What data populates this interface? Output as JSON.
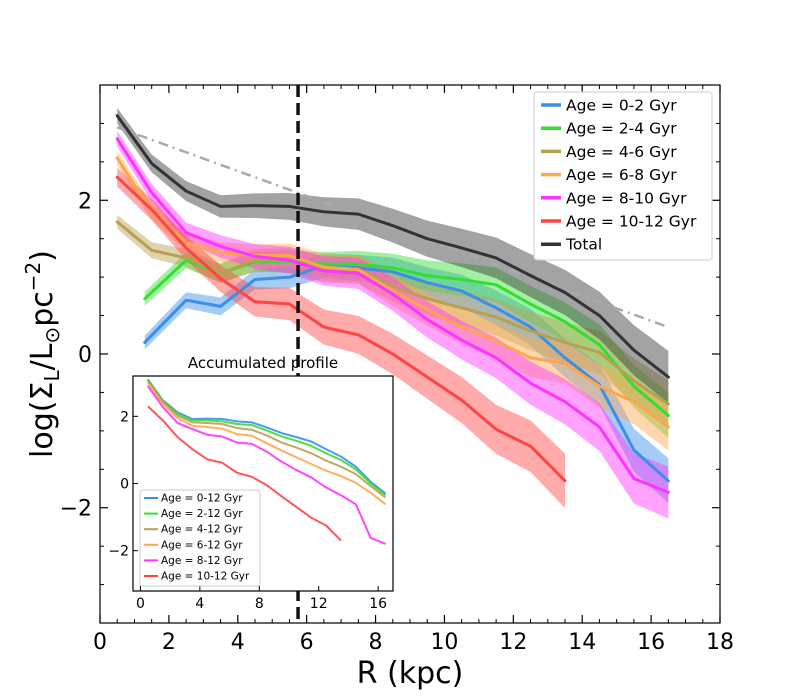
{
  "chart_data": [
    {
      "type": "line",
      "xlabel": "R (kpc)",
      "ylabel": "log(Σ_L/L⊙pc⁻²)",
      "ylabel_parts": {
        "main": "log(Σ",
        "sub1": "L",
        "slash": "/L",
        "sub2": "⊙",
        "pc": "pc",
        "sup": "−2",
        "close": ")"
      },
      "xlim": [
        0,
        18
      ],
      "ylim": [
        -3.5,
        3.5
      ],
      "xticks": [
        0,
        2,
        4,
        6,
        8,
        10,
        12,
        14,
        16,
        18
      ],
      "yticks": [
        -2,
        0,
        2
      ],
      "ytick_labels": [
        "−2",
        "0",
        "2"
      ],
      "vline_x": 5.75,
      "reference_line": {
        "name": "reference slope",
        "x": [
          0.5,
          16.5
        ],
        "y": [
          2.95,
          0.35
        ],
        "color": "#aaaaaa"
      },
      "legend_position": "top-right",
      "series": [
        {
          "name": "Age = 0-2 Gyr",
          "color": "#3a8fe8",
          "x": [
            1.3,
            2.5,
            3.5,
            4.5,
            5.5,
            6.5,
            7.5,
            8.5,
            9.5,
            10.5,
            11.5,
            12.5,
            13.5,
            14.5,
            15.5,
            16.5
          ],
          "y": [
            0.15,
            0.7,
            0.62,
            0.97,
            1.0,
            1.15,
            1.12,
            1.07,
            0.93,
            0.82,
            0.6,
            0.35,
            -0.05,
            -0.4,
            -1.25,
            -1.65
          ],
          "band": 0.09
        },
        {
          "name": "Age = 2-4 Gyr",
          "color": "#33dd33",
          "x": [
            1.3,
            2.5,
            3.5,
            4.5,
            5.5,
            6.5,
            7.5,
            8.5,
            9.5,
            10.5,
            11.5,
            12.5,
            13.5,
            14.5,
            15.5,
            16.5
          ],
          "y": [
            0.72,
            1.22,
            1.05,
            1.2,
            1.2,
            1.17,
            1.17,
            1.12,
            1.02,
            0.97,
            0.9,
            0.65,
            0.42,
            0.12,
            -0.42,
            -0.8
          ],
          "band": 0.09
        },
        {
          "name": "Age = 4-6 Gyr",
          "color": "#b8a050",
          "x": [
            0.5,
            1.5,
            2.5,
            3.5,
            4.5,
            5.5,
            6.5,
            7.5,
            8.5,
            9.5,
            10.5,
            11.5,
            12.5,
            13.5,
            14.5,
            15.5,
            16.5
          ],
          "y": [
            1.72,
            1.35,
            1.25,
            1.05,
            1.22,
            1.22,
            1.1,
            1.1,
            0.88,
            0.72,
            0.6,
            0.48,
            0.3,
            0.15,
            0.02,
            -0.35,
            -0.65
          ],
          "band": 0.09
        },
        {
          "name": "Age = 6-8 Gyr",
          "color": "#ffa64d",
          "x": [
            0.5,
            1.5,
            2.5,
            3.5,
            4.5,
            5.5,
            6.5,
            7.5,
            8.5,
            9.5,
            10.5,
            11.5,
            12.5,
            13.5,
            14.5,
            15.5,
            16.5
          ],
          "y": [
            2.55,
            1.85,
            1.45,
            1.32,
            1.28,
            1.28,
            1.13,
            1.1,
            0.82,
            0.58,
            0.35,
            0.17,
            -0.05,
            -0.12,
            -0.42,
            -0.62,
            -0.95
          ],
          "band": 0.09
        },
        {
          "name": "Age = 8-10 Gyr",
          "color": "#ff33ff",
          "x": [
            0.5,
            1.5,
            2.5,
            3.5,
            4.5,
            5.5,
            6.5,
            7.5,
            8.5,
            9.5,
            10.5,
            11.5,
            12.5,
            13.5,
            14.5,
            15.5,
            16.5
          ],
          "y": [
            2.8,
            2.1,
            1.58,
            1.4,
            1.27,
            1.22,
            1.08,
            1.05,
            0.78,
            0.45,
            0.18,
            -0.05,
            -0.38,
            -0.62,
            -0.95,
            -1.62,
            -1.8
          ],
          "band": 0.1
        },
        {
          "name": "Age = 10-12 Gyr",
          "color": "#ff4444",
          "x": [
            0.5,
            1.5,
            2.5,
            3.5,
            4.5,
            5.5,
            6.5,
            7.5,
            8.5,
            9.5,
            10.5,
            11.5,
            12.5,
            13.5
          ],
          "y": [
            2.3,
            1.88,
            1.38,
            0.98,
            0.68,
            0.65,
            0.35,
            0.25,
            0.0,
            -0.3,
            -0.6,
            -0.98,
            -1.2,
            -1.65
          ],
          "band": 0.12
        },
        {
          "name": "Total",
          "color": "#333333",
          "x": [
            0.5,
            1.5,
            2.5,
            3.5,
            4.5,
            5.5,
            6.5,
            7.5,
            8.5,
            9.5,
            10.5,
            11.5,
            12.5,
            13.5,
            14.5,
            15.5,
            16.5
          ],
          "y": [
            3.1,
            2.48,
            2.12,
            1.92,
            1.93,
            1.92,
            1.85,
            1.82,
            1.67,
            1.5,
            1.38,
            1.25,
            1.02,
            0.8,
            0.5,
            0.05,
            -0.3
          ],
          "band": 0.1
        }
      ]
    },
    {
      "type": "line",
      "title": "Accumulated profile",
      "xlim": [
        -0.5,
        17
      ],
      "ylim": [
        -3.2,
        3.2
      ],
      "xticks": [
        0,
        4,
        8,
        12,
        16
      ],
      "yticks": [
        -2,
        0,
        2
      ],
      "ytick_labels": [
        "−2",
        "0",
        "2"
      ],
      "legend_position": "lower-left",
      "series": [
        {
          "name": "Age = 0-12 Gyr",
          "color": "#3a8fe8",
          "x": [
            0.5,
            1.5,
            2.5,
            3.5,
            4.5,
            5.5,
            6.5,
            7.5,
            8.5,
            9.5,
            10.5,
            11.5,
            12.5,
            13.5,
            14.5,
            15.5,
            16.5
          ],
          "y": [
            3.1,
            2.48,
            2.12,
            1.92,
            1.93,
            1.92,
            1.85,
            1.82,
            1.67,
            1.5,
            1.38,
            1.25,
            1.02,
            0.8,
            0.5,
            0.05,
            -0.3
          ]
        },
        {
          "name": "Age = 2-12 Gyr",
          "color": "#33dd33",
          "x": [
            0.5,
            1.5,
            2.5,
            3.5,
            4.5,
            5.5,
            6.5,
            7.5,
            8.5,
            9.5,
            10.5,
            11.5,
            12.5,
            13.5,
            14.5,
            15.5,
            16.5
          ],
          "y": [
            3.08,
            2.46,
            2.08,
            1.88,
            1.88,
            1.85,
            1.77,
            1.74,
            1.58,
            1.4,
            1.27,
            1.12,
            0.9,
            0.7,
            0.42,
            0.0,
            -0.35
          ]
        },
        {
          "name": "Age = 4-12 Gyr",
          "color": "#b8a050",
          "x": [
            0.5,
            1.5,
            2.5,
            3.5,
            4.5,
            5.5,
            6.5,
            7.5,
            8.5,
            9.5,
            10.5,
            11.5,
            12.5,
            13.5,
            14.5,
            15.5,
            16.5
          ],
          "y": [
            3.05,
            2.43,
            2.02,
            1.82,
            1.8,
            1.77,
            1.65,
            1.6,
            1.43,
            1.22,
            1.07,
            0.9,
            0.68,
            0.5,
            0.28,
            -0.08,
            -0.42
          ]
        },
        {
          "name": "Age = 6-12 Gyr",
          "color": "#ffa64d",
          "x": [
            0.5,
            1.5,
            2.5,
            3.5,
            4.5,
            5.5,
            6.5,
            7.5,
            8.5,
            9.5,
            10.5,
            11.5,
            12.5,
            13.5,
            14.5,
            15.5,
            16.5
          ],
          "y": [
            3.0,
            2.38,
            1.95,
            1.72,
            1.68,
            1.63,
            1.47,
            1.42,
            1.2,
            0.98,
            0.78,
            0.58,
            0.38,
            0.22,
            0.02,
            -0.28,
            -0.62
          ]
        },
        {
          "name": "Age = 8-12 Gyr",
          "color": "#ff33ff",
          "x": [
            0.5,
            1.5,
            2.5,
            3.5,
            4.5,
            5.5,
            6.5,
            7.5,
            8.5,
            9.5,
            10.5,
            11.5,
            12.5,
            13.5,
            14.5,
            15.5,
            16.5
          ],
          "y": [
            2.9,
            2.28,
            1.8,
            1.62,
            1.45,
            1.4,
            1.22,
            1.18,
            0.95,
            0.65,
            0.4,
            0.18,
            -0.12,
            -0.35,
            -0.62,
            -1.62,
            -1.8
          ]
        },
        {
          "name": "Age = 10-12 Gyr",
          "color": "#ff4444",
          "x": [
            0.5,
            1.5,
            2.5,
            3.5,
            4.5,
            5.5,
            6.5,
            7.5,
            8.5,
            9.5,
            10.5,
            11.5,
            12.5,
            13.5
          ],
          "y": [
            2.3,
            1.88,
            1.38,
            1.02,
            0.72,
            0.62,
            0.32,
            0.2,
            -0.05,
            -0.38,
            -0.7,
            -1.02,
            -1.25,
            -1.7
          ]
        }
      ]
    }
  ]
}
